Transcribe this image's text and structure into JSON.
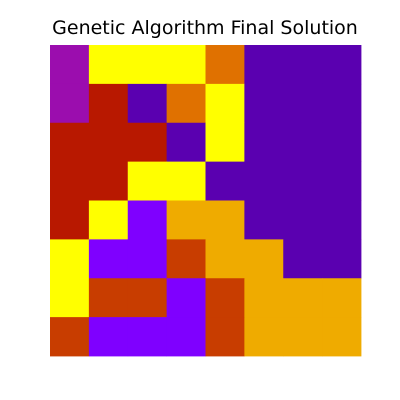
{
  "chart_data": {
    "type": "heatmap",
    "title": "Genetic Algorithm Final Solution",
    "xlabel": "",
    "ylabel": "",
    "axes_visible": false,
    "grid": false,
    "legend": "none",
    "rows": 8,
    "cols": 8,
    "palette": {
      "magenta": "#9B0DAE",
      "yellow": "#FFFF00",
      "orange": "#E07100",
      "indigo": "#5A00B0",
      "dark_red": "#B81800",
      "violet": "#7F00FF",
      "red_orange": "#C83D00",
      "amber": "#EFAB00"
    },
    "grid_colors": [
      [
        "magenta",
        "yellow",
        "yellow",
        "yellow",
        "orange",
        "indigo",
        "indigo",
        "indigo"
      ],
      [
        "magenta",
        "dark_red",
        "indigo",
        "orange",
        "yellow",
        "indigo",
        "indigo",
        "indigo"
      ],
      [
        "dark_red",
        "dark_red",
        "dark_red",
        "indigo",
        "yellow",
        "indigo",
        "indigo",
        "indigo"
      ],
      [
        "dark_red",
        "dark_red",
        "yellow",
        "yellow",
        "indigo",
        "indigo",
        "indigo",
        "indigo"
      ],
      [
        "dark_red",
        "yellow",
        "violet",
        "amber",
        "amber",
        "indigo",
        "indigo",
        "indigo"
      ],
      [
        "yellow",
        "violet",
        "violet",
        "red_orange",
        "amber",
        "amber",
        "indigo",
        "indigo"
      ],
      [
        "yellow",
        "red_orange",
        "red_orange",
        "violet",
        "red_orange",
        "amber",
        "amber",
        "amber"
      ],
      [
        "red_orange",
        "violet",
        "violet",
        "violet",
        "red_orange",
        "amber",
        "amber",
        "amber"
      ]
    ]
  }
}
